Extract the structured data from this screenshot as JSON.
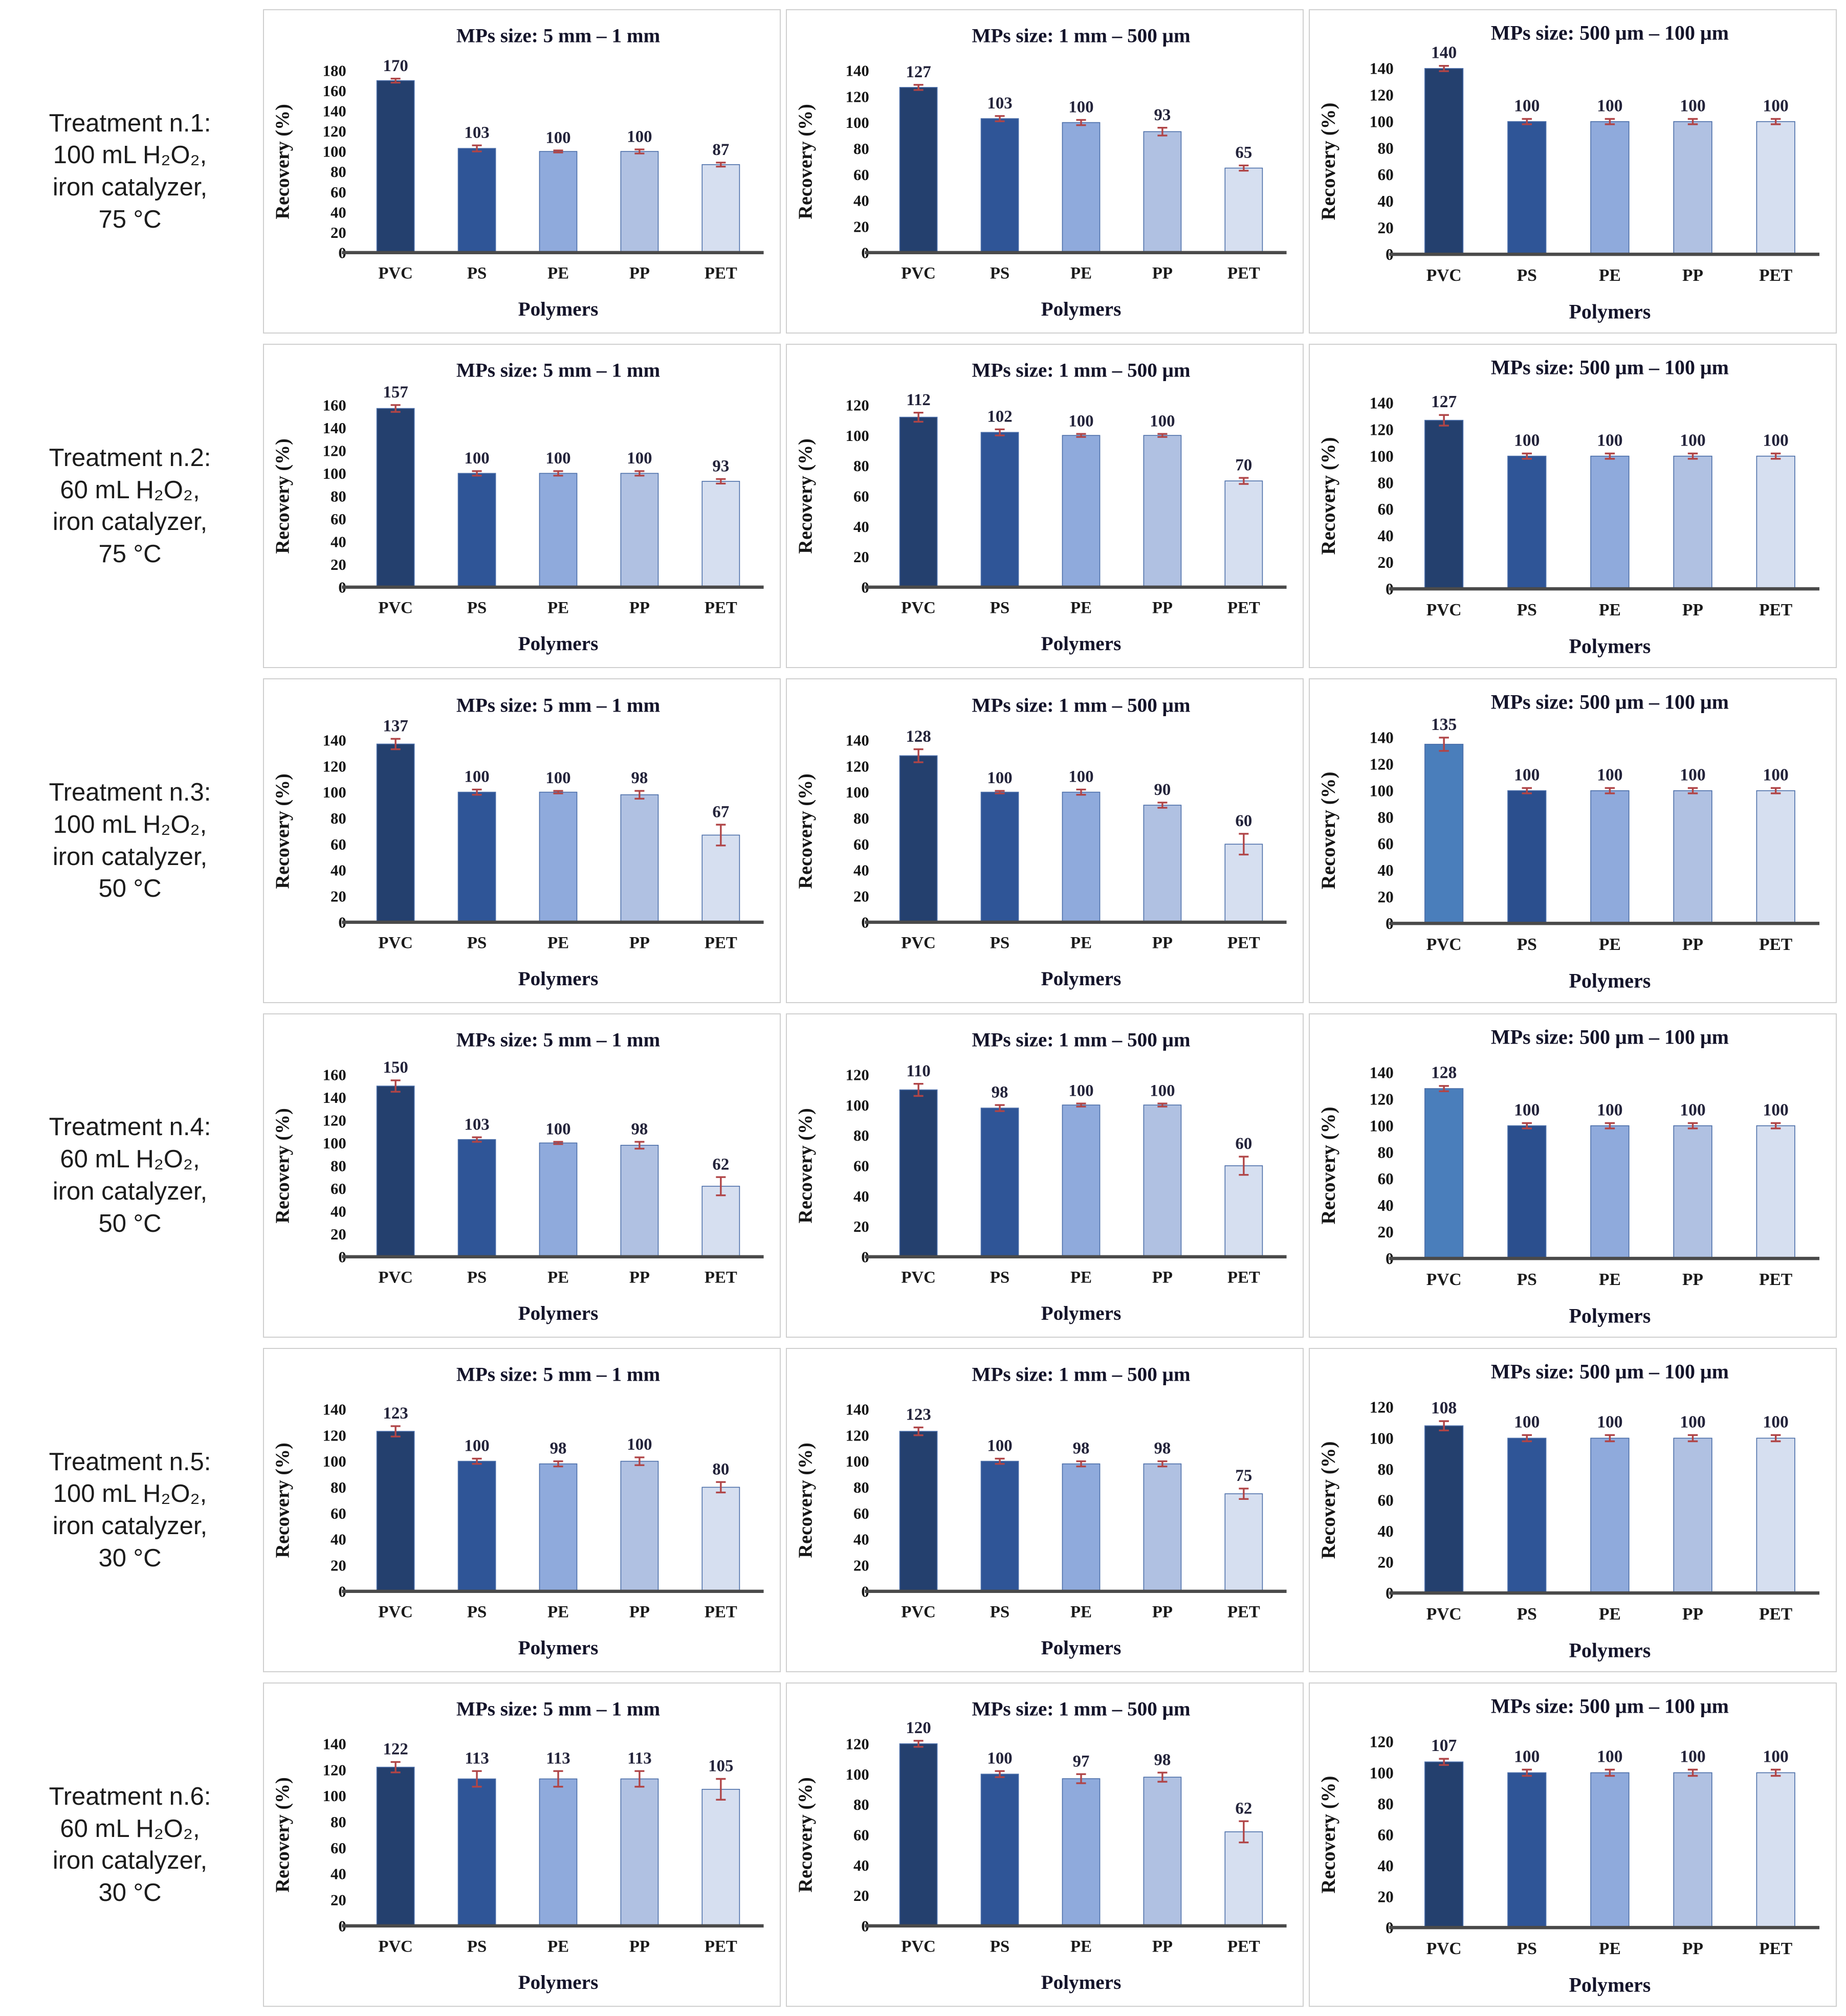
{
  "figure": {
    "ylabel": "Recovery (%)",
    "xlabel": "Polymers",
    "categories": [
      "PVC",
      "PS",
      "PE",
      "PP",
      "PET"
    ],
    "grid": "off",
    "legend": "none"
  },
  "palette": {
    "PVC": "#24406E",
    "PS": "#2F5597",
    "PE": "#8FAADC",
    "PP": "#B0C1E2",
    "PET": "#D6DFF0"
  },
  "bar_outline_color": "#4a6da8",
  "error_bar_color": "#B04547",
  "baseline_color": "#4a4a4a",
  "treatments": [
    {
      "lines": [
        "Treatment n.1:",
        "100 mL H₂O₂,",
        "iron catalyzer,",
        "75 °C"
      ]
    },
    {
      "lines": [
        "Treatment n.2:",
        "60 mL H₂O₂,",
        "iron catalyzer,",
        "75 °C"
      ]
    },
    {
      "lines": [
        "Treatment n.3:",
        "100 mL H₂O₂,",
        "iron catalyzer,",
        "50 °C"
      ]
    },
    {
      "lines": [
        "Treatment n.4:",
        "60 mL H₂O₂,",
        "iron catalyzer,",
        "50 °C"
      ]
    },
    {
      "lines": [
        "Treatment n.5:",
        "100 mL H₂O₂,",
        "iron catalyzer,",
        "30 °C"
      ]
    },
    {
      "lines": [
        "Treatment n.6:",
        "60 mL H₂O₂,",
        "iron catalyzer,",
        "30 °C"
      ]
    }
  ],
  "chart_data": [
    {
      "type": "bar",
      "row": 1,
      "col": 1,
      "title": "MPs size: 5 mm – 1 mm",
      "categories": [
        "PVC",
        "PS",
        "PE",
        "PP",
        "PET"
      ],
      "values": [
        170,
        103,
        100,
        100,
        87
      ],
      "errors": [
        2,
        3,
        1,
        2,
        2
      ],
      "ylim": [
        0,
        180
      ],
      "ytick": 20
    },
    {
      "type": "bar",
      "row": 1,
      "col": 2,
      "title": "MPs size: 1 mm – 500 μm",
      "categories": [
        "PVC",
        "PS",
        "PE",
        "PP",
        "PET"
      ],
      "values": [
        127,
        103,
        100,
        93,
        65
      ],
      "errors": [
        2,
        2,
        2,
        3,
        2
      ],
      "ylim": [
        0,
        140
      ],
      "ytick": 20
    },
    {
      "type": "bar",
      "row": 1,
      "col": 3,
      "title": "MPs size: 500 μm – 100 μm",
      "categories": [
        "PVC",
        "PS",
        "PE",
        "PP",
        "PET"
      ],
      "values": [
        140,
        100,
        100,
        100,
        100
      ],
      "errors": [
        2,
        2,
        2,
        2,
        2
      ],
      "ylim": [
        0,
        140
      ],
      "ytick": 20
    },
    {
      "type": "bar",
      "row": 2,
      "col": 1,
      "title": "MPs size: 5 mm – 1 mm",
      "categories": [
        "PVC",
        "PS",
        "PE",
        "PP",
        "PET"
      ],
      "values": [
        157,
        100,
        100,
        100,
        93
      ],
      "errors": [
        3,
        2,
        2,
        2,
        2
      ],
      "ylim": [
        0,
        160
      ],
      "ytick": 20
    },
    {
      "type": "bar",
      "row": 2,
      "col": 2,
      "title": "MPs size: 1 mm – 500 μm",
      "categories": [
        "PVC",
        "PS",
        "PE",
        "PP",
        "PET"
      ],
      "values": [
        112,
        102,
        100,
        100,
        70
      ],
      "errors": [
        3,
        2,
        1,
        1,
        2
      ],
      "ylim": [
        0,
        120
      ],
      "ytick": 20
    },
    {
      "type": "bar",
      "row": 2,
      "col": 3,
      "title": "MPs size: 500 μm – 100 μm",
      "categories": [
        "PVC",
        "PS",
        "PE",
        "PP",
        "PET"
      ],
      "values": [
        127,
        100,
        100,
        100,
        100
      ],
      "errors": [
        4,
        2,
        2,
        2,
        2
      ],
      "ylim": [
        0,
        140
      ],
      "ytick": 20
    },
    {
      "type": "bar",
      "row": 3,
      "col": 1,
      "title": "MPs size: 5 mm – 1 mm",
      "categories": [
        "PVC",
        "PS",
        "PE",
        "PP",
        "PET"
      ],
      "values": [
        137,
        100,
        100,
        98,
        67
      ],
      "errors": [
        4,
        2,
        1,
        3,
        8
      ],
      "ylim": [
        0,
        140
      ],
      "ytick": 20
    },
    {
      "type": "bar",
      "row": 3,
      "col": 2,
      "title": "MPs size: 1 mm – 500 μm",
      "categories": [
        "PVC",
        "PS",
        "PE",
        "PP",
        "PET"
      ],
      "values": [
        128,
        100,
        100,
        90,
        60
      ],
      "errors": [
        5,
        1,
        2,
        2,
        8
      ],
      "ylim": [
        0,
        140
      ],
      "ytick": 20
    },
    {
      "type": "bar",
      "row": 3,
      "col": 3,
      "title": "MPs size: 500 μm – 100 μm",
      "categories": [
        "PVC",
        "PS",
        "PE",
        "PP",
        "PET"
      ],
      "values": [
        135,
        100,
        100,
        100,
        100
      ],
      "errors": [
        5,
        2,
        2,
        2,
        2
      ],
      "ylim": [
        0,
        140
      ],
      "ytick": 20,
      "colors": [
        "#4A7EBB",
        "#2B4F8E",
        "#8FAADC",
        "#B0C1E2",
        "#D6DFF0"
      ]
    },
    {
      "type": "bar",
      "row": 4,
      "col": 1,
      "title": "MPs size: 5 mm – 1 mm",
      "categories": [
        "PVC",
        "PS",
        "PE",
        "PP",
        "PET"
      ],
      "values": [
        150,
        103,
        100,
        98,
        62
      ],
      "errors": [
        5,
        2,
        1,
        3,
        8
      ],
      "ylim": [
        0,
        160
      ],
      "ytick": 20
    },
    {
      "type": "bar",
      "row": 4,
      "col": 2,
      "title": "MPs size: 1 mm – 500 μm",
      "categories": [
        "PVC",
        "PS",
        "PE",
        "PP",
        "PET"
      ],
      "values": [
        110,
        98,
        100,
        100,
        60
      ],
      "errors": [
        4,
        2,
        1,
        1,
        6
      ],
      "ylim": [
        0,
        120
      ],
      "ytick": 20
    },
    {
      "type": "bar",
      "row": 4,
      "col": 3,
      "title": "MPs size: 500 μm – 100 μm",
      "categories": [
        "PVC",
        "PS",
        "PE",
        "PP",
        "PET"
      ],
      "values": [
        128,
        100,
        100,
        100,
        100
      ],
      "errors": [
        2,
        2,
        2,
        2,
        2
      ],
      "ylim": [
        0,
        140
      ],
      "ytick": 20,
      "colors": [
        "#4A7EBB",
        "#2B4F8E",
        "#8FAADC",
        "#B0C1E2",
        "#D6DFF0"
      ]
    },
    {
      "type": "bar",
      "row": 5,
      "col": 1,
      "title": "MPs size: 5 mm – 1 mm",
      "categories": [
        "PVC",
        "PS",
        "PE",
        "PP",
        "PET"
      ],
      "values": [
        123,
        100,
        98,
        100,
        80
      ],
      "errors": [
        4,
        2,
        2,
        3,
        4
      ],
      "ylim": [
        0,
        140
      ],
      "ytick": 20
    },
    {
      "type": "bar",
      "row": 5,
      "col": 2,
      "title": "MPs size: 1 mm – 500 μm",
      "categories": [
        "PVC",
        "PS",
        "PE",
        "PP",
        "PET"
      ],
      "values": [
        123,
        100,
        98,
        98,
        75
      ],
      "errors": [
        3,
        2,
        2,
        2,
        4
      ],
      "ylim": [
        0,
        140
      ],
      "ytick": 20
    },
    {
      "type": "bar",
      "row": 5,
      "col": 3,
      "title": "MPs size: 500 μm – 100 μm",
      "categories": [
        "PVC",
        "PS",
        "PE",
        "PP",
        "PET"
      ],
      "values": [
        108,
        100,
        100,
        100,
        100
      ],
      "errors": [
        3,
        2,
        2,
        2,
        2
      ],
      "ylim": [
        0,
        120
      ],
      "ytick": 20
    },
    {
      "type": "bar",
      "row": 6,
      "col": 1,
      "title": "MPs size: 5 mm – 1 mm",
      "categories": [
        "PVC",
        "PS",
        "PE",
        "PP",
        "PET"
      ],
      "values": [
        122,
        113,
        113,
        113,
        105
      ],
      "errors": [
        4,
        6,
        6,
        6,
        8
      ],
      "ylim": [
        0,
        140
      ],
      "ytick": 20
    },
    {
      "type": "bar",
      "row": 6,
      "col": 2,
      "title": "MPs size: 1 mm – 500 μm",
      "categories": [
        "PVC",
        "PS",
        "PE",
        "PP",
        "PET"
      ],
      "values": [
        120,
        100,
        97,
        98,
        62
      ],
      "errors": [
        2,
        2,
        3,
        3,
        7
      ],
      "ylim": [
        0,
        120
      ],
      "ytick": 20
    },
    {
      "type": "bar",
      "row": 6,
      "col": 3,
      "title": "MPs size: 500 μm – 100 μm",
      "categories": [
        "PVC",
        "PS",
        "PE",
        "PP",
        "PET"
      ],
      "values": [
        107,
        100,
        100,
        100,
        100
      ],
      "errors": [
        2,
        2,
        2,
        2,
        2
      ],
      "ylim": [
        0,
        120
      ],
      "ytick": 20
    }
  ]
}
